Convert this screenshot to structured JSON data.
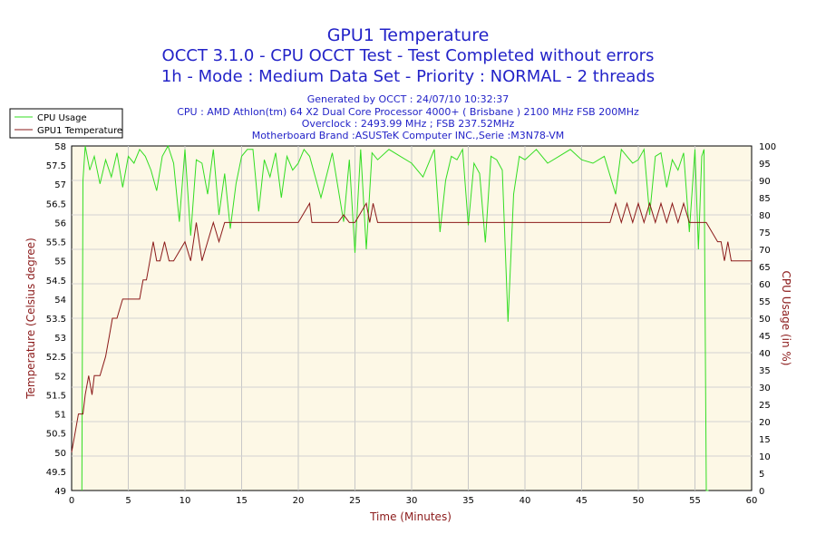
{
  "chart_data": {
    "type": "line",
    "title": "GPU1 Temperature",
    "subtitle_lines": [
      "OCCT 3.1.0 - CPU OCCT Test - Test Completed without errors",
      "1h - Mode : Medium Data Set - Priority : NORMAL - 2 threads"
    ],
    "info_lines": [
      "Generated by OCCT : 24/07/10 10:32:37",
      "CPU : AMD Athlon(tm) 64 X2 Dual Core Processor 4000+ ( Brisbane ) 2100 MHz FSB 200MHz",
      "Overclock : 2493.99 MHz ; FSB 237.52MHz",
      "Motherboard Brand :ASUSTeK Computer INC.,Serie :M3N78-VM"
    ],
    "xlabel": "Time (Minutes)",
    "ylabel_left": "Temperature (Celsius degree)",
    "ylabel_right": "CPU Usage (in %)",
    "xlim": [
      0,
      60
    ],
    "ylim_left": [
      49,
      58
    ],
    "ylim_right": [
      0,
      100
    ],
    "x_ticks": [
      "0",
      "5",
      "10",
      "15",
      "20",
      "25",
      "30",
      "35",
      "40",
      "45",
      "50",
      "55",
      "60"
    ],
    "y_left_ticks": [
      "49",
      "49.5",
      "50",
      "50.5",
      "51",
      "51.5",
      "52",
      "52.5",
      "53",
      "53.5",
      "54",
      "54.5",
      "55",
      "55.5",
      "56",
      "56.5",
      "57",
      "57.5",
      "58"
    ],
    "y_right_ticks": [
      "0",
      "5",
      "10",
      "15",
      "20",
      "25",
      "30",
      "35",
      "40",
      "45",
      "50",
      "55",
      "60",
      "65",
      "70",
      "75",
      "80",
      "85",
      "90",
      "95",
      "100"
    ],
    "grid": true,
    "legend_position": "top-left",
    "colors": {
      "cpu_usage": "#33dd22",
      "gpu_temperature": "#8b1a1a",
      "plot_background": "#fdf8e6",
      "text": "#2323c8",
      "axis_label": "#8b1a1a"
    },
    "series": [
      {
        "name": "CPU Usage",
        "axis": "right",
        "x": [
          0,
          0.5,
          0.9,
          1.0,
          1.2,
          1.6,
          2.0,
          2.5,
          3.0,
          3.5,
          4.0,
          4.5,
          5.0,
          5.5,
          6.0,
          6.5,
          7.0,
          7.5,
          8.0,
          8.5,
          9.0,
          9.5,
          10.0,
          10.5,
          11.0,
          11.5,
          12.0,
          12.5,
          13.0,
          13.5,
          14.0,
          14.5,
          15.0,
          15.5,
          16.0,
          16.5,
          17.0,
          17.5,
          18.0,
          18.5,
          19.0,
          19.5,
          20.0,
          20.5,
          21.0,
          22.0,
          23.0,
          24.0,
          24.5,
          25.0,
          25.5,
          26.0,
          26.5,
          27.0,
          28.0,
          29.0,
          30.0,
          31.0,
          32.0,
          32.5,
          33.0,
          33.5,
          34.0,
          34.5,
          35.0,
          35.5,
          36.0,
          36.5,
          37.0,
          37.5,
          38.0,
          38.5,
          39.0,
          39.5,
          40.0,
          41.0,
          42.0,
          43.0,
          44.0,
          45.0,
          46.0,
          47.0,
          48.0,
          48.5,
          49.0,
          49.5,
          50.0,
          50.5,
          51.0,
          51.5,
          52.0,
          52.5,
          53.0,
          53.5,
          54.0,
          54.5,
          55.0,
          55.3,
          55.6,
          55.8,
          56.0,
          56.2
        ],
        "values": [
          null,
          null,
          0,
          90,
          100,
          93,
          97,
          89,
          96,
          91,
          98,
          88,
          97,
          95,
          99,
          97,
          93,
          87,
          97,
          100,
          95,
          78,
          99,
          74,
          96,
          95,
          86,
          99,
          80,
          92,
          76,
          89,
          97,
          99,
          99,
          81,
          96,
          91,
          98,
          85,
          97,
          93,
          95,
          99,
          97,
          85,
          98,
          78,
          96,
          69,
          99,
          70,
          98,
          96,
          99,
          97,
          95,
          91,
          99,
          75,
          90,
          97,
          96,
          99,
          77,
          95,
          92,
          72,
          97,
          96,
          93,
          49,
          86,
          97,
          96,
          99,
          95,
          97,
          99,
          96,
          95,
          97,
          86,
          99,
          97,
          95,
          96,
          99,
          80,
          97,
          98,
          88,
          96,
          93,
          98,
          75,
          99,
          70,
          97,
          99,
          0,
          0
        ]
      },
      {
        "name": "GPU1 Temperature",
        "axis": "left",
        "x": [
          0,
          0.3,
          0.6,
          1.0,
          1.2,
          1.5,
          1.8,
          2.0,
          2.5,
          3.0,
          3.3,
          3.6,
          4.0,
          4.5,
          5.0,
          5.5,
          6.0,
          6.3,
          6.6,
          6.9,
          7.2,
          7.5,
          7.8,
          8.2,
          8.6,
          9.0,
          10.0,
          10.5,
          11.0,
          11.5,
          12.0,
          12.5,
          13.0,
          13.5,
          14.0,
          14.5,
          15.0,
          16.0,
          20.0,
          21.0,
          21.2,
          22.0,
          23.0,
          23.5,
          24.0,
          24.5,
          25.0,
          26.0,
          26.3,
          26.6,
          27.0,
          30.0,
          35.0,
          40.0,
          45.0,
          47.5,
          48.0,
          48.5,
          49.0,
          49.5,
          50.0,
          50.5,
          51.0,
          51.5,
          52.0,
          52.5,
          53.0,
          53.5,
          54.0,
          54.5,
          55.0,
          56.0,
          57.0,
          57.3,
          57.6,
          57.9,
          58.2,
          58.5,
          59.0,
          60.0
        ],
        "values": [
          50,
          50.5,
          51,
          51,
          51.5,
          52,
          51.5,
          52,
          52,
          52.5,
          53,
          53.5,
          53.5,
          54,
          54,
          54,
          54,
          54.5,
          54.5,
          55,
          55.5,
          55,
          55,
          55.5,
          55,
          55,
          55.5,
          55,
          56,
          55,
          55.5,
          56,
          55.5,
          56,
          56,
          56,
          56,
          56,
          56,
          56.5,
          56,
          56,
          56,
          56,
          56.2,
          56,
          56,
          56.5,
          56,
          56.5,
          56,
          56,
          56,
          56,
          56,
          56,
          56.5,
          56,
          56.5,
          56,
          56.5,
          56,
          56.5,
          56,
          56.5,
          56,
          56.5,
          56,
          56.5,
          56,
          56,
          56,
          55.5,
          55.5,
          55,
          55.5,
          55,
          55,
          55,
          55
        ]
      }
    ]
  }
}
